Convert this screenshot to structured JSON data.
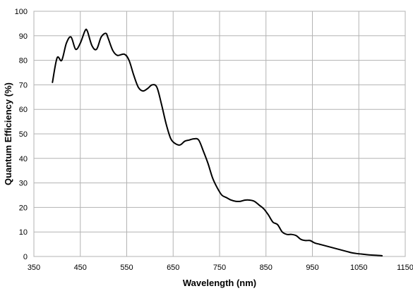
{
  "chart_data": {
    "type": "line",
    "xlabel": "Wavelength (nm)",
    "ylabel": "Quantum Efficiency (%)",
    "xlim": [
      350,
      1150
    ],
    "ylim": [
      0,
      100
    ],
    "x_ticks": [
      350,
      450,
      550,
      650,
      750,
      850,
      950,
      1050,
      1150
    ],
    "y_ticks": [
      0,
      10,
      20,
      30,
      40,
      50,
      60,
      70,
      80,
      90,
      100
    ],
    "grid": true,
    "legend": "none",
    "series": [
      {
        "color": "#000000",
        "x": [
          390,
          400,
          410,
          420,
          430,
          440,
          450,
          460,
          465,
          475,
          485,
          495,
          505,
          510,
          520,
          530,
          545,
          555,
          565,
          575,
          585,
          595,
          605,
          615,
          625,
          635,
          645,
          655,
          665,
          675,
          685,
          695,
          705,
          715,
          725,
          735,
          745,
          755,
          765,
          775,
          785,
          795,
          805,
          815,
          825,
          835,
          845,
          855,
          865,
          875,
          885,
          895,
          905,
          915,
          925,
          935,
          945,
          955,
          965,
          975,
          985,
          995,
          1005,
          1015,
          1025,
          1035,
          1045,
          1055,
          1065,
          1075,
          1085,
          1095,
          1100
        ],
        "y": [
          71,
          81,
          80,
          87,
          89.5,
          84.5,
          87,
          92,
          92,
          86,
          84.5,
          89.5,
          91,
          89,
          84,
          82,
          82.5,
          80,
          74,
          69,
          67.5,
          68.5,
          70,
          69,
          62,
          54,
          48,
          46,
          45.5,
          47,
          47.5,
          48,
          47.5,
          43,
          38,
          32,
          28,
          25,
          24,
          23,
          22.5,
          22.5,
          23,
          23,
          22.5,
          21,
          19.5,
          17,
          14,
          13,
          10,
          9,
          9,
          8.5,
          7,
          6.5,
          6.5,
          5.5,
          5,
          4.5,
          4,
          3.5,
          3,
          2.5,
          2,
          1.5,
          1.2,
          1,
          0.8,
          0.6,
          0.5,
          0.4,
          0.3
        ]
      }
    ]
  }
}
